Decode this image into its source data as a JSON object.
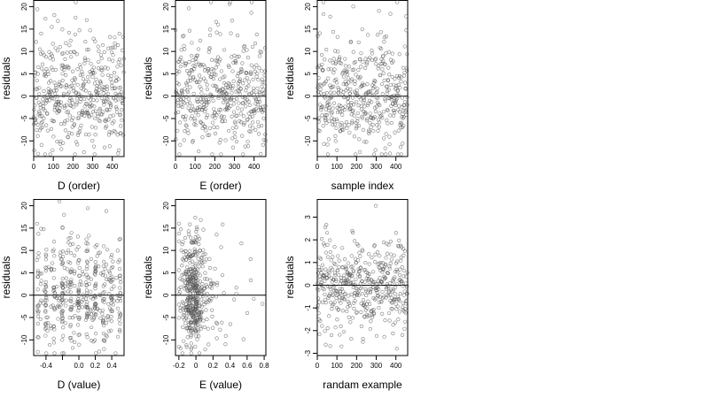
{
  "chart_data": [
    {
      "type": "scatter",
      "xlabel": "D (order)",
      "ylabel": "residuals",
      "xlim": [
        0,
        460
      ],
      "ylim": [
        -13.5,
        21.5
      ],
      "xticks": [
        0,
        100,
        200,
        300,
        400
      ],
      "yticks": [
        -10,
        -5,
        0,
        5,
        10,
        15,
        20
      ],
      "hline": 0,
      "generator": {
        "kind": "order",
        "n": 460,
        "seed": 11,
        "sd": 5.5,
        "skew": 1.6,
        "min": -13,
        "max": 21
      }
    },
    {
      "type": "scatter",
      "xlabel": "E (order)",
      "ylabel": "residuals",
      "xlim": [
        0,
        460
      ],
      "ylim": [
        -13.5,
        21.5
      ],
      "xticks": [
        0,
        100,
        200,
        300,
        400
      ],
      "yticks": [
        -10,
        -5,
        0,
        5,
        10,
        15,
        20
      ],
      "hline": 0,
      "generator": {
        "kind": "order",
        "n": 460,
        "seed": 23,
        "sd": 5.5,
        "skew": 1.6,
        "min": -13,
        "max": 21
      }
    },
    {
      "type": "scatter",
      "xlabel": "sample index",
      "ylabel": "residuals",
      "xlim": [
        0,
        460
      ],
      "ylim": [
        -13.5,
        21.5
      ],
      "xticks": [
        0,
        100,
        200,
        300,
        400
      ],
      "yticks": [
        -10,
        -5,
        0,
        5,
        10,
        15,
        20
      ],
      "hline": 0,
      "generator": {
        "kind": "order",
        "n": 460,
        "seed": 37,
        "sd": 5.5,
        "skew": 1.6,
        "min": -13,
        "max": 21
      }
    },
    {
      "type": "scatter",
      "xlabel": "D (value)",
      "ylabel": "residuals",
      "xlim": [
        -0.55,
        0.55
      ],
      "ylim": [
        -13.5,
        21.5
      ],
      "xticks": [
        -0.4,
        -0.2,
        0.0,
        0.2,
        0.4
      ],
      "xtick_labels": [
        "-0.4",
        "",
        "0.0",
        "0.2",
        "0.4"
      ],
      "yticks": [
        -10,
        -5,
        0,
        5,
        10,
        15,
        20
      ],
      "hline": 0,
      "generator": {
        "kind": "columns",
        "n": 460,
        "seed": 41,
        "sd": 5.5,
        "skew": 1.6,
        "min": -13,
        "max": 21,
        "xmin": -0.5,
        "xmax": 0.5,
        "columns": [
          -0.5,
          -0.4,
          -0.3,
          -0.2,
          -0.1,
          0.0,
          0.1,
          0.2,
          0.3,
          0.4,
          0.5
        ]
      }
    },
    {
      "type": "scatter",
      "xlabel": "E (value)",
      "ylabel": "residuals",
      "xlim": [
        -0.24,
        0.82
      ],
      "ylim": [
        -13.5,
        21.5
      ],
      "xticks": [
        -0.2,
        0.0,
        0.2,
        0.4,
        0.6,
        0.8
      ],
      "yticks": [
        -10,
        -5,
        0,
        5,
        10,
        15,
        20
      ],
      "hline": 0,
      "generator": {
        "kind": "skewx",
        "n": 460,
        "seed": 53,
        "sd": 5.5,
        "skew": 1.6,
        "min": -13,
        "max": 21,
        "xmin": -0.2,
        "xmax": 0.78,
        "center": -0.05
      }
    },
    {
      "type": "scatter",
      "xlabel": "randam example",
      "ylabel": "residuals",
      "xlim": [
        0,
        460
      ],
      "ylim": [
        -3.1,
        3.8
      ],
      "xticks": [
        0,
        100,
        200,
        300,
        400
      ],
      "yticks": [
        -3,
        -2,
        -1,
        0,
        1,
        2,
        3
      ],
      "hline": 0,
      "generator": {
        "kind": "order",
        "n": 460,
        "seed": 67,
        "sd": 1.0,
        "skew": 0,
        "min": -2.9,
        "max": 3.5
      }
    }
  ]
}
